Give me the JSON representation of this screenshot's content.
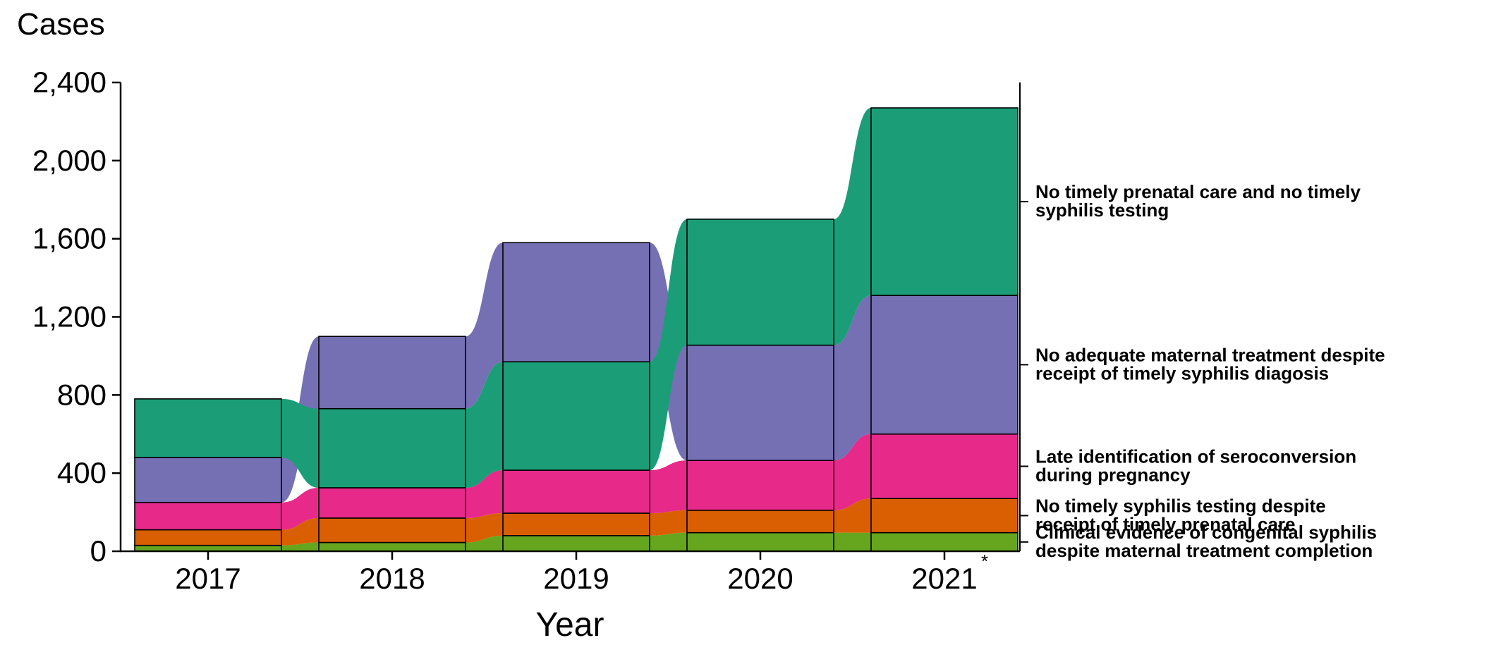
{
  "chart_data": {
    "type": "bar",
    "subtype": "stacked alluvial",
    "ylabel": "Cases",
    "xlabel": "Year",
    "ylim": [
      0,
      2400
    ],
    "yticks": [
      "0",
      "400",
      "800",
      "1,200",
      "1,600",
      "2,000",
      "2,400"
    ],
    "categories": [
      "2017",
      "2018",
      "2019",
      "2020",
      "2021"
    ],
    "category_note": {
      "index": 4,
      "text": "*"
    },
    "grid": false,
    "legend": "right side labels",
    "series": [
      {
        "name": "Clinical evidence of congenital syphilis despite maternal treatment completion",
        "label_lines": [
          "Clinical evidence of congenital syphilis",
          "despite maternal treatment completion"
        ],
        "color": "#66a61e",
        "values": [
          30,
          45,
          80,
          95,
          95
        ]
      },
      {
        "name": "No timely syphilis testing despite receipt of timely prenatal care",
        "label_lines": [
          "No timely syphilis testing despite",
          "receipt of timely prenatal care"
        ],
        "color": "#d95f02",
        "values": [
          80,
          125,
          115,
          115,
          175
        ]
      },
      {
        "name": "Late identification of seroconversion during pregnancy",
        "label_lines": [
          "Late identification of seroconversion",
          "during pregnancy"
        ],
        "color": "#e7298a",
        "values": [
          140,
          155,
          220,
          255,
          330
        ]
      },
      {
        "name": "No adequate maternal treatment despite receipt of timely syphilis diagosis",
        "label_lines": [
          "No adequate maternal treatment despite",
          "receipt of timely syphilis diagosis"
        ],
        "color": "#7570b3",
        "values": [
          230,
          370,
          610,
          590,
          710
        ]
      },
      {
        "name": "No timely prenatal care and no timely syphilis testing",
        "label_lines": [
          "No timely prenatal care and no timely",
          "syphilis testing"
        ],
        "color": "#1b9e77",
        "values": [
          300,
          405,
          555,
          645,
          960
        ]
      }
    ],
    "order_by_year": [
      [
        0,
        1,
        2,
        3,
        4
      ],
      [
        0,
        1,
        2,
        4,
        3
      ],
      [
        0,
        1,
        2,
        4,
        3
      ],
      [
        0,
        1,
        2,
        3,
        4
      ],
      [
        0,
        1,
        2,
        3,
        4
      ]
    ],
    "label_series_order": [
      4,
      3,
      2,
      1,
      0
    ]
  }
}
